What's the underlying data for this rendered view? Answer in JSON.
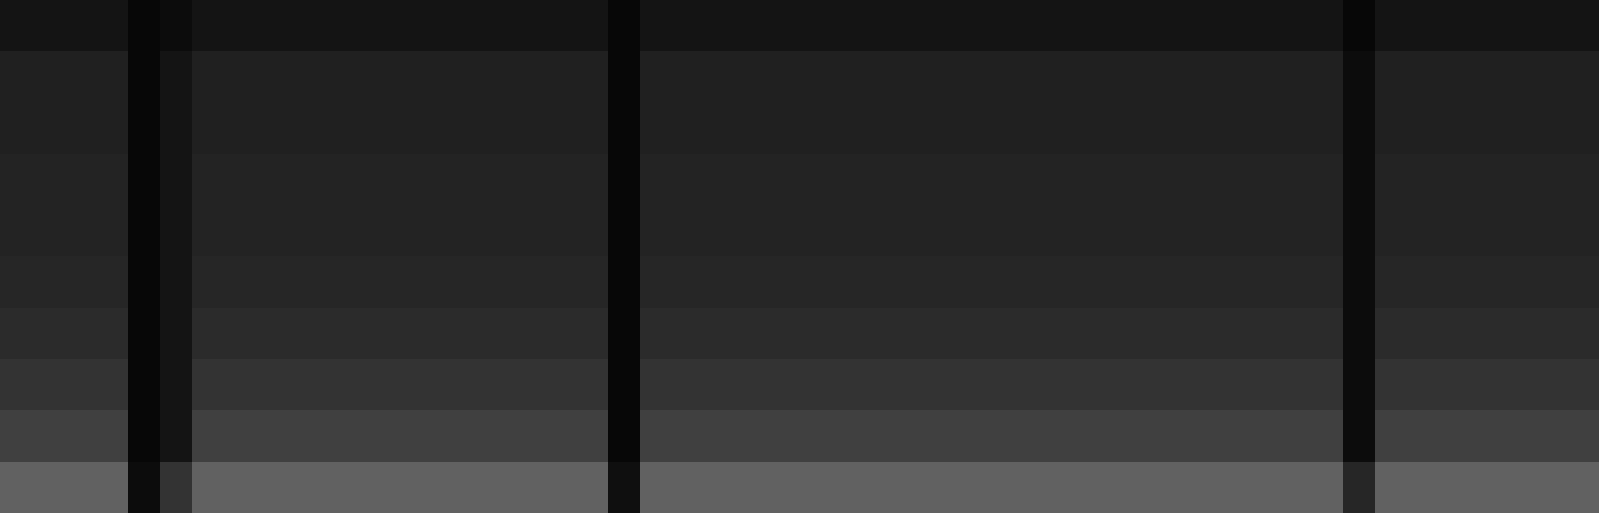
{
  "chart_data": {
    "type": "heatmap",
    "tick_labels": false,
    "color": "gray",
    "range": [
      0,
      1
    ],
    "cells": [
      [
        0.08,
        0.08,
        0.08,
        0.08,
        0.03,
        0.05,
        0.08,
        0.08,
        0.08,
        0.08,
        0.08,
        0.08,
        0.08,
        0.08,
        0.08,
        0.08,
        0.08,
        0.08,
        0.08,
        0.03,
        0.08,
        0.08,
        0.08,
        0.08,
        0.08,
        0.08,
        0.08,
        0.08,
        0.08,
        0.08,
        0.08,
        0.08,
        0.08,
        0.08,
        0.08,
        0.08,
        0.08,
        0.08,
        0.08,
        0.08,
        0.08,
        0.08,
        0.03,
        0.08,
        0.08,
        0.08,
        0.08,
        0.08,
        0.08,
        0.08
      ],
      [
        0.13,
        0.13,
        0.13,
        0.13,
        0.03,
        0.08,
        0.13,
        0.13,
        0.13,
        0.13,
        0.13,
        0.13,
        0.13,
        0.13,
        0.13,
        0.13,
        0.13,
        0.13,
        0.13,
        0.03,
        0.13,
        0.13,
        0.13,
        0.13,
        0.13,
        0.13,
        0.13,
        0.13,
        0.13,
        0.13,
        0.13,
        0.13,
        0.13,
        0.13,
        0.13,
        0.13,
        0.13,
        0.13,
        0.13,
        0.13,
        0.13,
        0.13,
        0.05,
        0.13,
        0.13,
        0.13,
        0.13,
        0.13,
        0.13,
        0.13
      ],
      [
        0.13,
        0.13,
        0.13,
        0.13,
        0.03,
        0.08,
        0.13,
        0.13,
        0.13,
        0.13,
        0.13,
        0.13,
        0.13,
        0.13,
        0.13,
        0.13,
        0.13,
        0.13,
        0.13,
        0.03,
        0.13,
        0.13,
        0.13,
        0.13,
        0.13,
        0.13,
        0.13,
        0.13,
        0.13,
        0.13,
        0.13,
        0.13,
        0.13,
        0.13,
        0.13,
        0.13,
        0.13,
        0.13,
        0.13,
        0.13,
        0.13,
        0.13,
        0.05,
        0.13,
        0.13,
        0.13,
        0.13,
        0.13,
        0.13,
        0.13
      ],
      [
        0.14,
        0.14,
        0.14,
        0.14,
        0.03,
        0.08,
        0.14,
        0.14,
        0.14,
        0.14,
        0.14,
        0.14,
        0.14,
        0.14,
        0.14,
        0.14,
        0.14,
        0.14,
        0.14,
        0.03,
        0.14,
        0.14,
        0.14,
        0.14,
        0.14,
        0.14,
        0.14,
        0.14,
        0.14,
        0.14,
        0.14,
        0.14,
        0.14,
        0.14,
        0.14,
        0.14,
        0.14,
        0.14,
        0.14,
        0.14,
        0.14,
        0.14,
        0.05,
        0.14,
        0.14,
        0.14,
        0.14,
        0.14,
        0.14,
        0.14
      ],
      [
        0.14,
        0.14,
        0.14,
        0.14,
        0.03,
        0.08,
        0.14,
        0.14,
        0.14,
        0.14,
        0.14,
        0.14,
        0.14,
        0.14,
        0.14,
        0.14,
        0.14,
        0.14,
        0.14,
        0.03,
        0.14,
        0.14,
        0.14,
        0.14,
        0.14,
        0.14,
        0.14,
        0.14,
        0.14,
        0.14,
        0.14,
        0.14,
        0.14,
        0.14,
        0.14,
        0.14,
        0.14,
        0.14,
        0.14,
        0.14,
        0.14,
        0.14,
        0.05,
        0.14,
        0.14,
        0.14,
        0.14,
        0.14,
        0.14,
        0.14
      ],
      [
        0.15,
        0.15,
        0.15,
        0.15,
        0.03,
        0.08,
        0.15,
        0.15,
        0.15,
        0.15,
        0.15,
        0.15,
        0.15,
        0.15,
        0.15,
        0.15,
        0.15,
        0.15,
        0.15,
        0.03,
        0.15,
        0.15,
        0.15,
        0.15,
        0.15,
        0.15,
        0.15,
        0.15,
        0.15,
        0.15,
        0.15,
        0.15,
        0.15,
        0.15,
        0.15,
        0.15,
        0.15,
        0.15,
        0.15,
        0.15,
        0.15,
        0.15,
        0.05,
        0.15,
        0.15,
        0.15,
        0.15,
        0.15,
        0.15,
        0.15
      ],
      [
        0.17,
        0.17,
        0.17,
        0.17,
        0.03,
        0.08,
        0.17,
        0.17,
        0.17,
        0.17,
        0.17,
        0.17,
        0.17,
        0.17,
        0.17,
        0.17,
        0.17,
        0.17,
        0.17,
        0.03,
        0.17,
        0.17,
        0.17,
        0.17,
        0.17,
        0.17,
        0.17,
        0.17,
        0.17,
        0.17,
        0.17,
        0.17,
        0.17,
        0.17,
        0.17,
        0.17,
        0.17,
        0.17,
        0.17,
        0.17,
        0.17,
        0.17,
        0.05,
        0.17,
        0.17,
        0.17,
        0.17,
        0.17,
        0.17,
        0.17
      ],
      [
        0.2,
        0.2,
        0.2,
        0.2,
        0.03,
        0.08,
        0.2,
        0.2,
        0.2,
        0.2,
        0.2,
        0.2,
        0.2,
        0.2,
        0.2,
        0.2,
        0.2,
        0.2,
        0.2,
        0.03,
        0.2,
        0.2,
        0.2,
        0.2,
        0.2,
        0.2,
        0.2,
        0.2,
        0.2,
        0.2,
        0.2,
        0.2,
        0.2,
        0.2,
        0.2,
        0.2,
        0.2,
        0.2,
        0.2,
        0.2,
        0.2,
        0.2,
        0.05,
        0.2,
        0.2,
        0.2,
        0.2,
        0.2,
        0.2,
        0.2
      ],
      [
        0.25,
        0.25,
        0.25,
        0.25,
        0.03,
        0.08,
        0.25,
        0.25,
        0.25,
        0.25,
        0.25,
        0.25,
        0.25,
        0.25,
        0.25,
        0.25,
        0.25,
        0.25,
        0.25,
        0.03,
        0.25,
        0.25,
        0.25,
        0.25,
        0.25,
        0.25,
        0.25,
        0.25,
        0.25,
        0.25,
        0.25,
        0.25,
        0.25,
        0.25,
        0.25,
        0.25,
        0.25,
        0.25,
        0.25,
        0.25,
        0.25,
        0.25,
        0.05,
        0.25,
        0.25,
        0.25,
        0.25,
        0.25,
        0.25,
        0.25
      ],
      [
        0.38,
        0.38,
        0.38,
        0.38,
        0.05,
        0.2,
        0.38,
        0.38,
        0.38,
        0.38,
        0.38,
        0.38,
        0.38,
        0.38,
        0.38,
        0.38,
        0.38,
        0.38,
        0.38,
        0.06,
        0.38,
        0.38,
        0.38,
        0.38,
        0.38,
        0.38,
        0.38,
        0.38,
        0.38,
        0.38,
        0.38,
        0.38,
        0.38,
        0.38,
        0.38,
        0.38,
        0.38,
        0.38,
        0.38,
        0.38,
        0.38,
        0.38,
        0.15,
        0.38,
        0.38,
        0.38,
        0.38,
        0.38,
        0.38,
        0.38
      ]
    ]
  }
}
